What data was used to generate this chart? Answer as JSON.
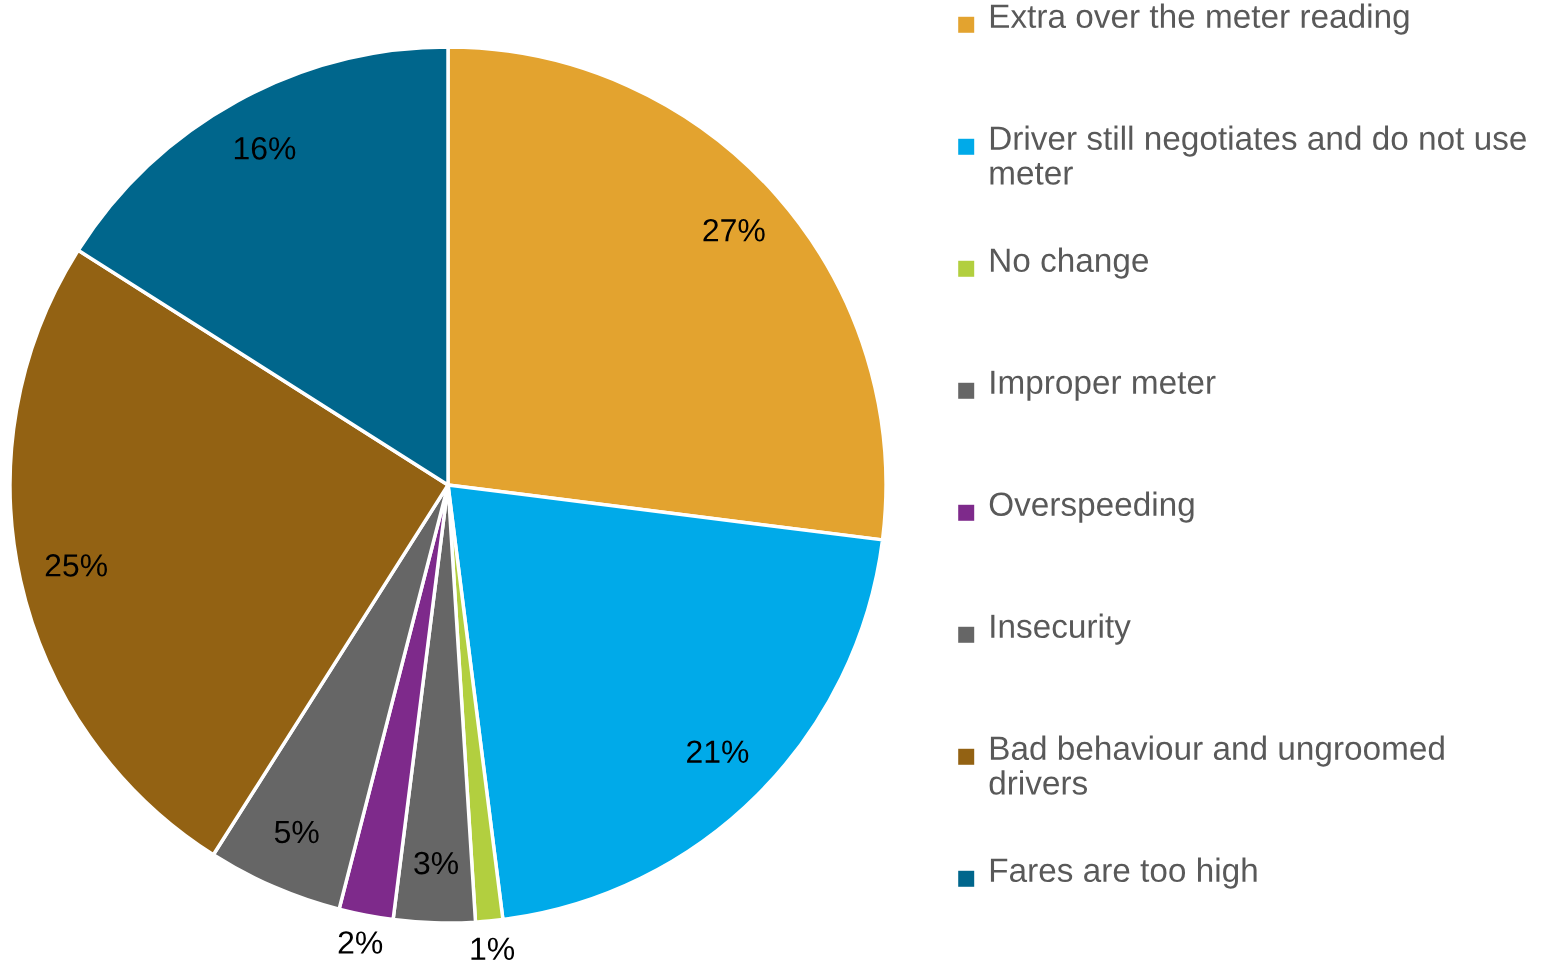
{
  "chart_data": {
    "type": "pie",
    "categories": [
      "Extra over the meter reading",
      "Driver still negotiates and do not use meter",
      "No change",
      "Improper meter",
      "Overspeeding",
      "Insecurity",
      "Bad behaviour and ungroomed drivers",
      "Fares are too high"
    ],
    "values": [
      27,
      21,
      1,
      3,
      2,
      5,
      25,
      16
    ],
    "colors": [
      "#e3a32f",
      "#00aae9",
      "#b2cf3f",
      "#666666",
      "#7e2a8b",
      "#666666",
      "#936213",
      "#00668c"
    ],
    "value_labels": [
      "27%",
      "21%",
      "1%",
      "3%",
      "2%",
      "5%",
      "25%",
      "16%"
    ],
    "legend": "right"
  }
}
